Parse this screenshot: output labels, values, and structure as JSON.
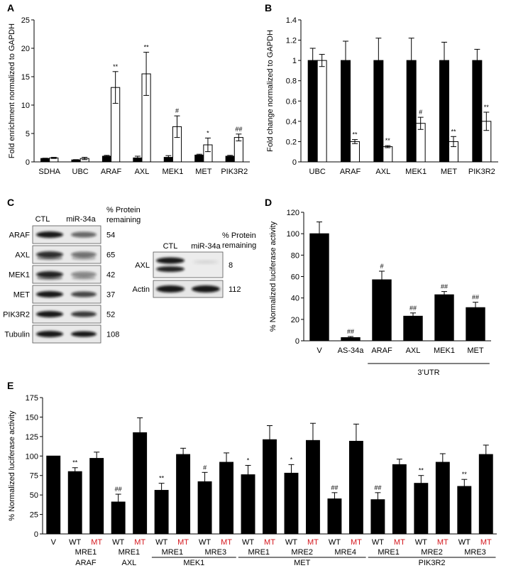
{
  "chart_data": [
    {
      "panel": "A",
      "type": "bar",
      "ylabel": "Fold enrichment normalized to GAPDH",
      "ylim": [
        0,
        25
      ],
      "yticks": [
        0,
        5,
        10,
        15,
        20,
        25
      ],
      "categories": [
        "SDHA",
        "UBC",
        "ARAF",
        "AXL",
        "MEK1",
        "MET",
        "PIK3R2"
      ],
      "series": [
        {
          "fill": "#000000",
          "values": [
            0.6,
            0.35,
            1.0,
            0.7,
            0.8,
            1.2,
            1.0
          ],
          "err": [
            0.05,
            0.05,
            0.15,
            0.3,
            0.3,
            0.15,
            0.15
          ]
        },
        {
          "fill": "#ffffff",
          "values": [
            0.7,
            0.6,
            13.1,
            15.5,
            6.2,
            3.0,
            4.3
          ],
          "err": [
            0.1,
            0.2,
            2.8,
            3.8,
            1.9,
            1.2,
            0.6
          ]
        }
      ],
      "annotations": [
        {
          "series": 1,
          "index": 2,
          "text": "**"
        },
        {
          "series": 1,
          "index": 3,
          "text": "**"
        },
        {
          "series": 1,
          "index": 4,
          "text": "#"
        },
        {
          "series": 1,
          "index": 5,
          "text": "*"
        },
        {
          "series": 1,
          "index": 6,
          "text": "##"
        }
      ]
    },
    {
      "panel": "B",
      "type": "bar",
      "ylabel": "Fold change normalized to GAPDH",
      "ylim": [
        0,
        1.4
      ],
      "yticks": [
        0,
        0.2,
        0.4,
        0.6,
        0.8,
        1,
        1.2,
        1.4
      ],
      "categories": [
        "UBC",
        "ARAF",
        "AXL",
        "MEK1",
        "MET",
        "PIK3R2"
      ],
      "series": [
        {
          "fill": "#000000",
          "values": [
            1.0,
            1.0,
            1.0,
            1.0,
            1.0,
            1.0
          ],
          "err": [
            0.12,
            0.19,
            0.22,
            0.22,
            0.18,
            0.11
          ]
        },
        {
          "fill": "#ffffff",
          "values": [
            1.0,
            0.2,
            0.15,
            0.38,
            0.2,
            0.4
          ],
          "err": [
            0.06,
            0.02,
            0.01,
            0.06,
            0.05,
            0.09
          ]
        }
      ],
      "annotations": [
        {
          "series": 1,
          "index": 1,
          "text": "**"
        },
        {
          "series": 1,
          "index": 2,
          "text": "**"
        },
        {
          "series": 1,
          "index": 3,
          "text": "#"
        },
        {
          "series": 1,
          "index": 4,
          "text": "**"
        },
        {
          "series": 1,
          "index": 5,
          "text": "**"
        }
      ]
    },
    {
      "panel": "D",
      "type": "bar",
      "ylabel": "% Normalized luciferase activity",
      "ylim": [
        0,
        120
      ],
      "yticks": [
        0,
        20,
        40,
        60,
        80,
        100,
        120
      ],
      "categories": [
        "V",
        "AS-34a",
        "ARAF",
        "AXL",
        "MEK1",
        "MET"
      ],
      "values": [
        100,
        3,
        57,
        23,
        43,
        31
      ],
      "err": [
        11,
        1,
        8,
        3,
        3,
        5
      ],
      "annotations": [
        "",
        "##",
        "#",
        "##",
        "##",
        "##"
      ],
      "group_label": "3’UTR",
      "group_range": [
        2,
        5
      ]
    },
    {
      "panel": "E",
      "type": "bar",
      "ylabel": "% Normalized luciferase activity",
      "ylim": [
        0,
        175
      ],
      "yticks": [
        0,
        25,
        50,
        75,
        100,
        125,
        150,
        175
      ],
      "bars": [
        {
          "label": "V",
          "value": 100,
          "err": 0,
          "ann": "",
          "red": false
        },
        {
          "label": "WT",
          "value": 80,
          "err": 5,
          "ann": "**",
          "red": false
        },
        {
          "label": "MT",
          "value": 97,
          "err": 8,
          "ann": "",
          "red": true
        },
        {
          "label": "WT",
          "value": 41,
          "err": 10,
          "ann": "##",
          "red": false
        },
        {
          "label": "MT",
          "value": 130,
          "err": 19,
          "ann": "",
          "red": true
        },
        {
          "label": "WT",
          "value": 56,
          "err": 9,
          "ann": "**",
          "red": false
        },
        {
          "label": "MT",
          "value": 102,
          "err": 8,
          "ann": "",
          "red": true
        },
        {
          "label": "WT",
          "value": 67,
          "err": 12,
          "ann": "#",
          "red": false
        },
        {
          "label": "MT",
          "value": 92,
          "err": 12,
          "ann": "",
          "red": true
        },
        {
          "label": "WT",
          "value": 76,
          "err": 12,
          "ann": "*",
          "red": false
        },
        {
          "label": "MT",
          "value": 121,
          "err": 18,
          "ann": "",
          "red": true
        },
        {
          "label": "WT",
          "value": 78,
          "err": 11,
          "ann": "*",
          "red": false
        },
        {
          "label": "MT",
          "value": 120,
          "err": 22,
          "ann": "",
          "red": true
        },
        {
          "label": "WT",
          "value": 45,
          "err": 8,
          "ann": "##",
          "red": false
        },
        {
          "label": "MT",
          "value": 119,
          "err": 22,
          "ann": "",
          "red": true
        },
        {
          "label": "WT",
          "value": 44,
          "err": 9,
          "ann": "##",
          "red": false
        },
        {
          "label": "MT",
          "value": 89,
          "err": 7,
          "ann": "",
          "red": true
        },
        {
          "label": "WT",
          "value": 65,
          "err": 10,
          "ann": "**",
          "red": false
        },
        {
          "label": "MT",
          "value": 92,
          "err": 11,
          "ann": "",
          "red": true
        },
        {
          "label": "WT",
          "value": 61,
          "err": 9,
          "ann": "**",
          "red": false
        },
        {
          "label": "MT",
          "value": 102,
          "err": 12,
          "ann": "",
          "red": true
        }
      ],
      "mre_labels": [
        {
          "text": "MRE1",
          "from": 1,
          "to": 2
        },
        {
          "text": "MRE1",
          "from": 3,
          "to": 4
        },
        {
          "text": "MRE1",
          "from": 5,
          "to": 6
        },
        {
          "text": "MRE3",
          "from": 7,
          "to": 8
        },
        {
          "text": "MRE1",
          "from": 9,
          "to": 10
        },
        {
          "text": "MRE2",
          "from": 11,
          "to": 12
        },
        {
          "text": "MRE4",
          "from": 13,
          "to": 14
        },
        {
          "text": "MRE1",
          "from": 15,
          "to": 16
        },
        {
          "text": "MRE2",
          "from": 17,
          "to": 18
        },
        {
          "text": "MRE3",
          "from": 19,
          "to": 20
        }
      ],
      "gene_labels": [
        {
          "text": "ARAF",
          "from": 1,
          "to": 2,
          "line": false
        },
        {
          "text": "AXL",
          "from": 3,
          "to": 4,
          "line": false
        },
        {
          "text": "MEK1",
          "from": 5,
          "to": 8,
          "line": true
        },
        {
          "text": "MET",
          "from": 9,
          "to": 14,
          "line": true
        },
        {
          "text": "PIK3R2",
          "from": 15,
          "to": 20,
          "line": true
        }
      ],
      "colors": {
        "mutant_label": "#d4161d"
      }
    }
  ],
  "blot_left": {
    "panel": "C",
    "col_labels": [
      "CTL",
      "miR-34a"
    ],
    "header": [
      "% Protein",
      "remaining"
    ],
    "rows": [
      {
        "label": "ARAF",
        "value": "54"
      },
      {
        "label": "AXL",
        "value": "65"
      },
      {
        "label": "MEK1",
        "value": "42"
      },
      {
        "label": "MET",
        "value": "37"
      },
      {
        "label": "PIK3R2",
        "value": "52"
      },
      {
        "label": "Tubulin",
        "value": "108"
      }
    ]
  },
  "blot_right": {
    "col_labels": [
      "CTL",
      "miR-34a"
    ],
    "header": [
      "% Protein",
      "remaining"
    ],
    "rows": [
      {
        "label": "AXL",
        "value": "8"
      },
      {
        "label": "Actin",
        "value": "112"
      }
    ]
  }
}
